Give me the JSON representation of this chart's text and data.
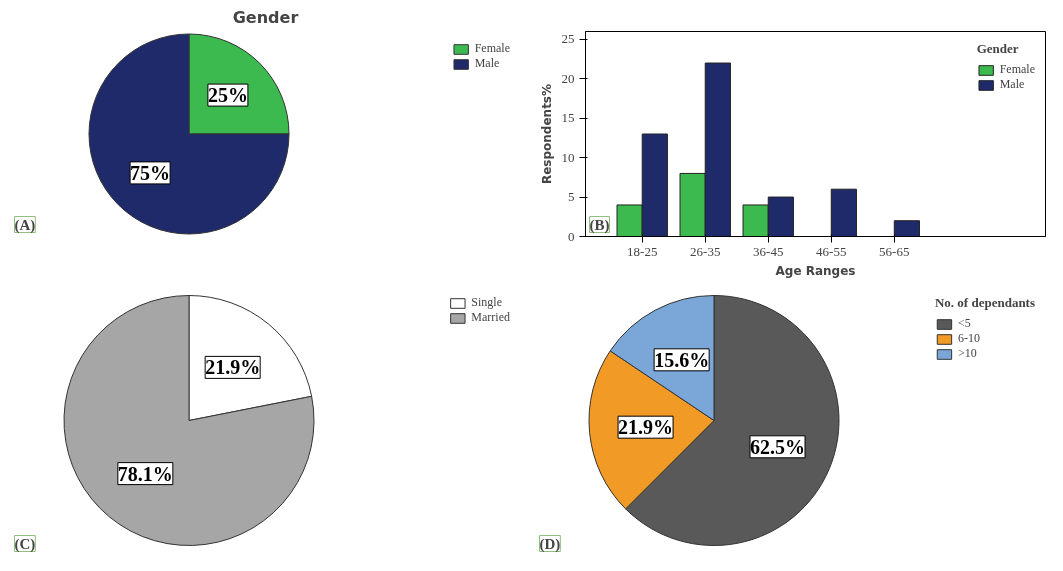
{
  "chart_data": [
    {
      "type": "pie",
      "title": "Gender",
      "categories": [
        "Female",
        "Male"
      ],
      "values": [
        25,
        75
      ],
      "colors": [
        "#3cb94f",
        "#1f2a6b"
      ],
      "value_labels": [
        "25%",
        "75%"
      ],
      "legend": "right",
      "annotations": [
        "(A)"
      ]
    },
    {
      "type": "bar",
      "xlabel": "Age Ranges",
      "ylabel": "Respondents%",
      "legend_title": "Gender",
      "categories": [
        "18-25",
        "26-35",
        "36-45",
        "46-55",
        "56-65"
      ],
      "series": [
        {
          "name": "Female",
          "color": "#3cb94f",
          "values": [
            4,
            8,
            4,
            null,
            null
          ]
        },
        {
          "name": "Male",
          "color": "#1f2a6b",
          "values": [
            13,
            22,
            5,
            6,
            2
          ]
        }
      ],
      "ylim": [
        0,
        26
      ],
      "yticks": [
        0,
        5,
        10,
        15,
        20,
        25
      ],
      "grid": false,
      "legend": "right",
      "annotations": [
        "(B)"
      ]
    },
    {
      "type": "pie",
      "categories": [
        "Single",
        "Married"
      ],
      "values": [
        21.9,
        78.1
      ],
      "colors": [
        "#ffffff",
        "#a6a6a6"
      ],
      "value_labels": [
        "21.9%",
        "78.1%"
      ],
      "legend": "right",
      "annotations": [
        "(C)"
      ]
    },
    {
      "type": "pie",
      "legend_title": "No. of dependants",
      "categories": [
        "<5",
        "6-10",
        ">10"
      ],
      "values": [
        62.5,
        21.9,
        15.6
      ],
      "colors": [
        "#595959",
        "#f29a26",
        "#7aa7d8"
      ],
      "value_labels": [
        "62.5%",
        "21.9%",
        "15.6%"
      ],
      "legend": "right",
      "annotations": [
        "(D)"
      ]
    }
  ]
}
